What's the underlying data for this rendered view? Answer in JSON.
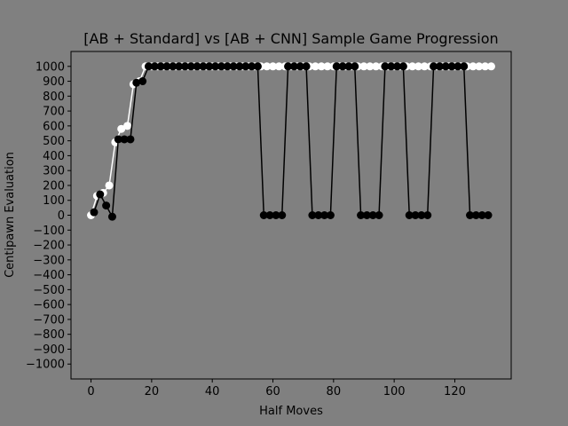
{
  "chart_data": {
    "type": "line",
    "title": "[AB + Standard] vs [AB + CNN] Sample Game Progression",
    "xlabel": "Half Moves",
    "ylabel": "Centipawn Evaluation",
    "xlim": [
      -6.6,
      138.6
    ],
    "ylim": [
      -1100,
      1100
    ],
    "xticks": [
      0,
      20,
      40,
      60,
      80,
      100,
      120
    ],
    "yticks": [
      1000,
      900,
      800,
      700,
      600,
      500,
      400,
      300,
      200,
      100,
      0,
      -100,
      -200,
      -300,
      -400,
      -500,
      -600,
      -700,
      -800,
      -900,
      -1000
    ],
    "grid": false,
    "legend": "none",
    "colors": {
      "background": "#808080",
      "white_side": "#ffffff",
      "black_side": "#000000"
    },
    "series": [
      {
        "color": "#ffffff",
        "x": [
          0,
          2,
          4,
          6,
          8,
          10,
          12,
          14,
          16,
          18,
          20,
          22,
          24,
          26,
          28,
          30,
          32,
          34,
          36,
          38,
          40,
          42,
          44,
          46,
          48,
          50,
          52,
          54,
          56,
          58,
          60,
          62,
          64,
          66,
          68,
          70,
          72,
          74,
          76,
          78,
          80,
          82,
          84,
          86,
          88,
          90,
          92,
          94,
          96,
          98,
          100,
          102,
          104,
          106,
          108,
          110,
          112,
          114,
          116,
          118,
          120,
          122,
          124,
          126,
          128,
          130,
          132
        ],
        "y": [
          0,
          130,
          150,
          200,
          490,
          580,
          600,
          880,
          900,
          1000,
          1000,
          1000,
          1000,
          1000,
          1000,
          1000,
          1000,
          1000,
          1000,
          1000,
          1000,
          1000,
          1000,
          1000,
          1000,
          1000,
          1000,
          1000,
          1000,
          1000,
          1000,
          1000,
          1000,
          1000,
          1000,
          1000,
          1000,
          1000,
          1000,
          1000,
          1000,
          1000,
          1000,
          1000,
          1000,
          1000,
          1000,
          1000,
          1000,
          1000,
          1000,
          1000,
          1000,
          1000,
          1000,
          1000,
          1000,
          1000,
          1000,
          1000,
          1000,
          1000,
          1000,
          1000,
          1000,
          1000,
          1000
        ]
      },
      {
        "color": "#000000",
        "x": [
          1,
          3,
          5,
          7,
          9,
          11,
          13,
          15,
          17,
          19,
          21,
          23,
          25,
          27,
          29,
          31,
          33,
          35,
          37,
          39,
          41,
          43,
          45,
          47,
          49,
          51,
          53,
          55,
          57,
          59,
          61,
          63,
          65,
          67,
          69,
          71,
          73,
          75,
          77,
          79,
          81,
          83,
          85,
          87,
          89,
          91,
          93,
          95,
          97,
          99,
          101,
          103,
          105,
          107,
          109,
          111,
          113,
          115,
          117,
          119,
          121,
          123,
          125,
          127,
          129,
          131
        ],
        "y": [
          20,
          140,
          65,
          -10,
          510,
          510,
          510,
          890,
          900,
          1000,
          1000,
          1000,
          1000,
          1000,
          1000,
          1000,
          1000,
          1000,
          1000,
          1000,
          1000,
          1000,
          1000,
          1000,
          1000,
          1000,
          1000,
          1000,
          0,
          0,
          0,
          0,
          1000,
          1000,
          1000,
          1000,
          0,
          0,
          0,
          0,
          1000,
          1000,
          1000,
          1000,
          0,
          0,
          0,
          0,
          1000,
          1000,
          1000,
          1000,
          0,
          0,
          0,
          0,
          1000,
          1000,
          1000,
          1000,
          1000,
          1000,
          0,
          0,
          0,
          0
        ]
      }
    ]
  }
}
